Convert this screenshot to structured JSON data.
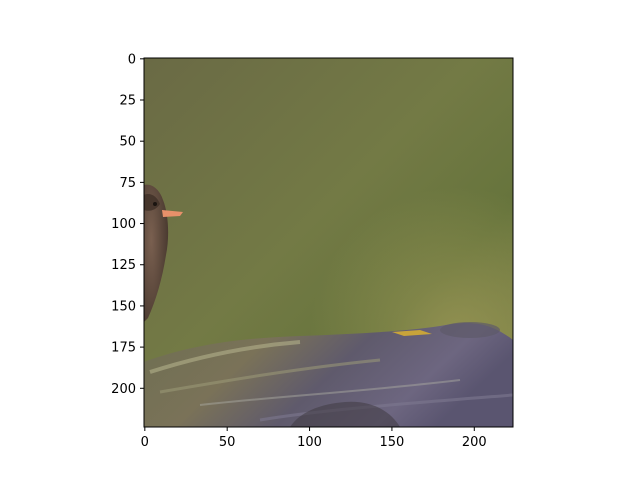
{
  "chart_data": {
    "type": "image",
    "title": "",
    "xlabel": "",
    "ylabel": "",
    "image_width": 224,
    "image_height": 224,
    "xlim": [
      -0.5,
      223.5
    ],
    "ylim": [
      223.5,
      -0.5
    ],
    "x_ticks": [
      0,
      50,
      100,
      150,
      200
    ],
    "y_ticks": [
      0,
      25,
      50,
      75,
      100,
      125,
      150,
      175,
      200
    ],
    "x_tick_labels": [
      "0",
      "50",
      "100",
      "150",
      "200"
    ],
    "y_tick_labels": [
      "0",
      "25",
      "50",
      "75",
      "100",
      "125",
      "150",
      "175",
      "200"
    ],
    "grid": false,
    "image_content": {
      "background_colors": [
        "#6b6b3e",
        "#7a7a45",
        "#5f6a3a",
        "#8a8a55"
      ],
      "bird_color": "#5a4535",
      "beak_color": "#e8906a",
      "log_colors": [
        "#6a5f5a",
        "#8c8a6a",
        "#5a5570",
        "#a0a070"
      ]
    }
  }
}
